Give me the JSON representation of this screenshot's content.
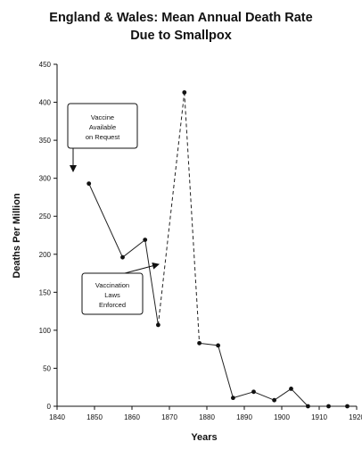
{
  "chart_data": {
    "type": "line",
    "title_lines": [
      "England & Wales: Mean Annual Death Rate",
      "Due to Smallpox"
    ],
    "xlabel": "Years",
    "ylabel": "Deaths Per Million",
    "xlim": [
      1840,
      1920
    ],
    "ylim": [
      0,
      450
    ],
    "x_ticks": [
      1840,
      1850,
      1860,
      1870,
      1880,
      1890,
      1900,
      1910,
      1920
    ],
    "y_ticks": [
      0,
      50,
      100,
      150,
      200,
      250,
      300,
      350,
      400,
      450
    ],
    "grid": false,
    "series": [
      {
        "x": [
          1848.5,
          1857.5,
          1863.5,
          1867,
          1874,
          1878,
          1883,
          1887,
          1892.5,
          1898,
          1902.5,
          1907,
          1912.5,
          1917.5
        ],
        "values": [
          293,
          196,
          219,
          107,
          413,
          83,
          80,
          11,
          19,
          8,
          23,
          0,
          0,
          0
        ]
      }
    ],
    "annotations": [
      {
        "lines": [
          "Vaccine",
          "Available",
          "on Request"
        ],
        "arrow_at_x": 1842
      },
      {
        "lines": [
          "Vaccination",
          "Laws",
          "Enforced"
        ],
        "arrow_at_x": 1866.5
      }
    ]
  }
}
